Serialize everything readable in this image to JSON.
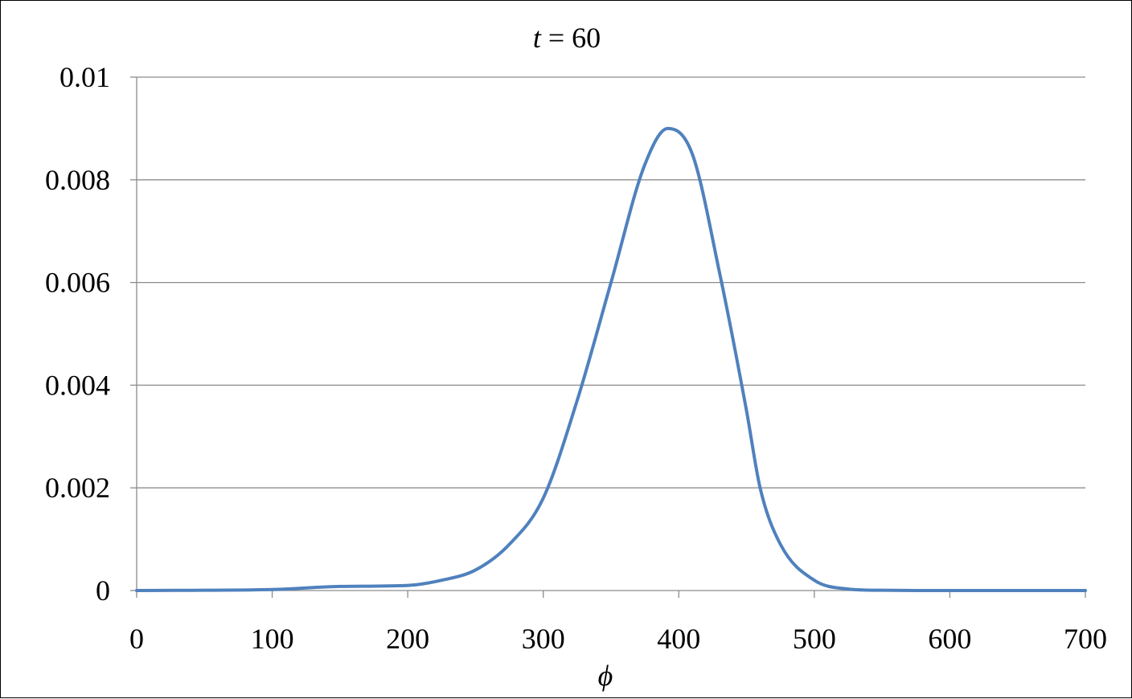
{
  "chart_data": {
    "type": "line",
    "title": {
      "variable": "t",
      "rest": " = 60"
    },
    "xlabel": "ϕ",
    "ylabel": "",
    "xlim": [
      0,
      700
    ],
    "ylim": [
      0,
      0.01
    ],
    "x_ticks": [
      0,
      100,
      200,
      300,
      400,
      500,
      600,
      700
    ],
    "x_tick_labels": [
      "0",
      "100",
      "200",
      "300",
      "400",
      "500",
      "600",
      "700"
    ],
    "y_ticks": [
      0,
      0.002,
      0.004,
      0.006,
      0.008,
      0.01
    ],
    "y_tick_labels": [
      "0",
      "0.002",
      "0.004",
      "0.006",
      "0.008",
      "0.01"
    ],
    "grid": "horizontal",
    "legend": "none",
    "series": [
      {
        "color": "#4F81BD",
        "x": [
          0,
          100,
          150,
          200,
          225,
          250,
          275,
          300,
          325,
          350,
          375,
          392,
          410,
          430,
          450,
          460,
          475,
          500,
          525,
          550,
          600,
          700
        ],
        "y": [
          0,
          2e-05,
          8e-05,
          0.0001,
          0.0002,
          0.0004,
          0.0009,
          0.0018,
          0.0037,
          0.006,
          0.0083,
          0.009,
          0.0085,
          0.0062,
          0.0035,
          0.002,
          0.0009,
          0.0002,
          3e-05,
          5e-06,
          0,
          0
        ]
      }
    ],
    "colors": {
      "line": "#4F81BD",
      "grid": "#8C8C8C",
      "axis": "#8C8C8C"
    }
  }
}
